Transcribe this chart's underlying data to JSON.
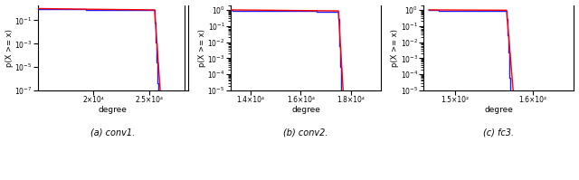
{
  "subplots": [
    {
      "label": "(a) conv1.",
      "xlabel": "degree",
      "ylabel": "p(X >= x)",
      "ylim": [
        1e-07,
        2.0
      ],
      "xlim": [
        15000,
        28500
      ],
      "x_ticks": [
        20000,
        25000
      ],
      "x_tick_labels": [
        "2×10⁴",
        "2.5×10⁴"
      ],
      "y_ticks": [
        1.0,
        0.1,
        0.01,
        0.001,
        0.0001,
        1e-05,
        1e-06,
        1e-07
      ],
      "data_x_start": 15000,
      "data_x_end": 27800,
      "cliff_start": 25500,
      "alpha": 12.0,
      "xmin": 15000,
      "has_right_vline": true,
      "vline_x": 28200
    },
    {
      "label": "(b) conv2.",
      "xlabel": "degree",
      "ylabel": "p(X >= x)",
      "ylim": [
        1e-05,
        2.0
      ],
      "xlim": [
        13200,
        19200
      ],
      "x_ticks": [
        14000,
        16000,
        18000
      ],
      "x_tick_labels": [
        "1.4×10⁴",
        "1.6×10⁴",
        "1.8×10⁴"
      ],
      "y_ticks": [
        1.0,
        0.1,
        0.01,
        0.001,
        0.0001,
        1e-05
      ],
      "data_x_start": 13200,
      "data_x_end": 19000,
      "cliff_start": 17500,
      "alpha": 15.0,
      "xmin": 13200,
      "has_right_vline": false,
      "vline_x": 0
    },
    {
      "label": "(c) fc3.",
      "xlabel": "degree",
      "ylabel": "p(X >= x)",
      "ylim": [
        1e-05,
        2.0
      ],
      "xlim": [
        139,
        168
      ],
      "x_ticks": [
        145,
        160
      ],
      "x_tick_labels": [
        "1.5×10²",
        "1.6×10²"
      ],
      "y_ticks": [
        1.0,
        0.1,
        0.01,
        0.001,
        0.0001,
        1e-05
      ],
      "data_x_start": 140,
      "data_x_end": 167,
      "cliff_start": 155,
      "alpha": 18.0,
      "xmin": 140,
      "has_right_vline": false,
      "vline_x": 0
    }
  ],
  "blue_color": "#0000ff",
  "red_color": "#ff0000",
  "background_color": "#ffffff"
}
